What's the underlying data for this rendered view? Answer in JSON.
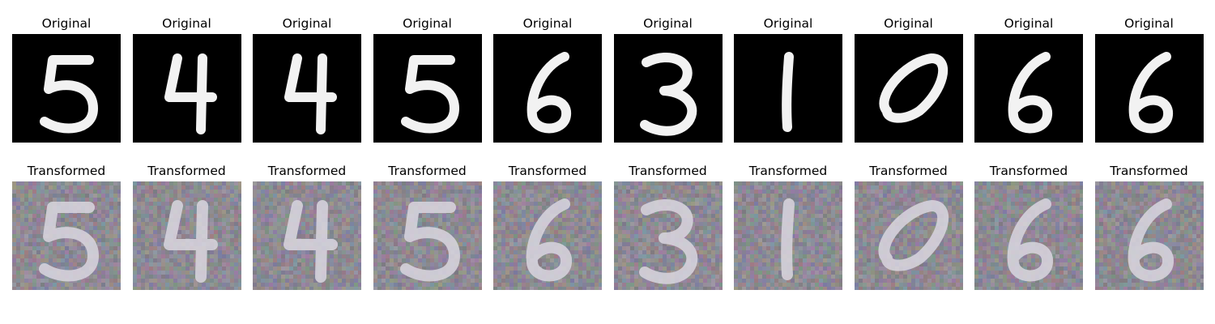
{
  "rows": {
    "original_title": "Original",
    "transformed_title": "Transformed"
  },
  "digits": [
    "5",
    "4",
    "4",
    "5",
    "6",
    "3",
    "1",
    "0",
    "6",
    "6"
  ],
  "colors": {
    "background": "#ffffff",
    "original_bg": "#000000",
    "original_stroke": "#f2f2f2",
    "transformed_bg": "#8a8790",
    "transformed_stroke": "#d9d6df"
  }
}
